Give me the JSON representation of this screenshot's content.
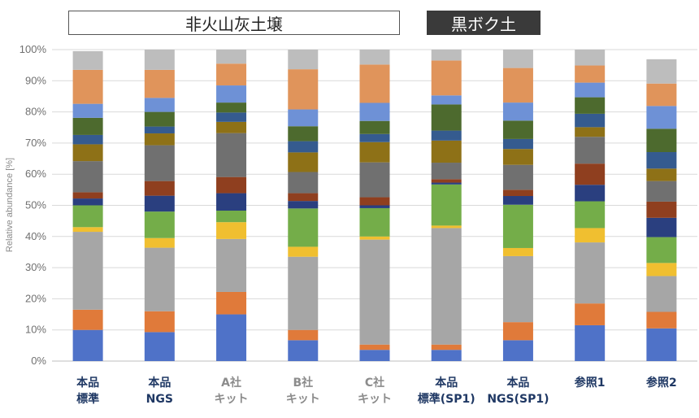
{
  "header": {
    "group_left": "非火山灰土壌",
    "group_right": "黒ボク土"
  },
  "chart_data": {
    "type": "bar",
    "stacked": true,
    "percent": true,
    "title": "",
    "xlabel": "",
    "ylabel": "Relative abundance [%]",
    "ylim": [
      0,
      100
    ],
    "yticks": [
      "0%",
      "10%",
      "20%",
      "30%",
      "40%",
      "50%",
      "60%",
      "70%",
      "80%",
      "90%",
      "100%"
    ],
    "grid": true,
    "legend": "none",
    "categories": [
      [
        "本品",
        "標準"
      ],
      [
        "本品",
        "NGS"
      ],
      [
        "A社",
        "キット"
      ],
      [
        "B社",
        "キット"
      ],
      [
        "C社",
        "キット"
      ],
      [
        "本品",
        "標準(SP1)"
      ],
      [
        "本品",
        "NGS(SP1)"
      ],
      [
        "参照1"
      ],
      [
        "参照2"
      ]
    ],
    "category_colors": [
      "#1f3864",
      "#1f3864",
      "#8c8c8c",
      "#8c8c8c",
      "#8c8c8c",
      "#1f3864",
      "#1f3864",
      "#1f3864",
      "#1f3864"
    ],
    "series": [
      {
        "color": "#4f72c8",
        "values": [
          10,
          9.3,
          15,
          6.7,
          3.6,
          3.6,
          6.7,
          11.5,
          10.5
        ]
      },
      {
        "color": "#e07a3a",
        "values": [
          6.5,
          6.7,
          7.2,
          3.3,
          1.7,
          1.7,
          5.8,
          7,
          5.3
        ]
      },
      {
        "color": "#a6a6a6",
        "values": [
          25,
          20.4,
          17,
          23.5,
          33.7,
          37.4,
          21.2,
          19.6,
          11.5
        ]
      },
      {
        "color": "#f0bf30",
        "values": [
          1.5,
          3.1,
          5.4,
          3.2,
          1,
          0.8,
          2.6,
          4.6,
          4.2
        ]
      },
      {
        "color": "#74ad49",
        "values": [
          7,
          8.5,
          3.7,
          12.3,
          9.1,
          13.2,
          13.9,
          8.6,
          8.3
        ]
      },
      {
        "color": "#2a3f7f",
        "values": [
          2.2,
          5.1,
          5.6,
          2.4,
          0.9,
          0.6,
          2.8,
          5.3,
          6.2
        ]
      },
      {
        "color": "#8f3f1f",
        "values": [
          2,
          4.7,
          5.2,
          2.5,
          2.6,
          1.1,
          2,
          6.8,
          5.2
        ]
      },
      {
        "color": "#707070",
        "values": [
          10,
          11.5,
          14.1,
          6.8,
          11.2,
          5.3,
          8,
          8.6,
          6.6
        ]
      },
      {
        "color": "#8e7117",
        "values": [
          5.4,
          3.8,
          3.6,
          6.3,
          6.5,
          7.1,
          5.1,
          3.1,
          4
        ]
      },
      {
        "color": "#355b8f",
        "values": [
          3,
          2.2,
          3,
          3.6,
          2.6,
          3.2,
          3.2,
          4.3,
          5.3
        ]
      },
      {
        "color": "#4d6a2e",
        "values": [
          5.5,
          4.7,
          3.2,
          4.8,
          4.2,
          8.4,
          5.9,
          5.3,
          7.5
        ]
      },
      {
        "color": "#6e91d6",
        "values": [
          4.5,
          4.5,
          5.5,
          5.4,
          5.8,
          2.9,
          5.8,
          4.7,
          7.3
        ]
      },
      {
        "color": "#e0945b",
        "values": [
          10.9,
          9,
          7,
          12.9,
          12.3,
          11.2,
          11.1,
          5.5,
          7.2
        ]
      },
      {
        "color": "#bdbdbd",
        "values": [
          6,
          6.5,
          4.5,
          6.3,
          4.8,
          3.5,
          5.9,
          5.1,
          7.8
        ]
      }
    ]
  }
}
